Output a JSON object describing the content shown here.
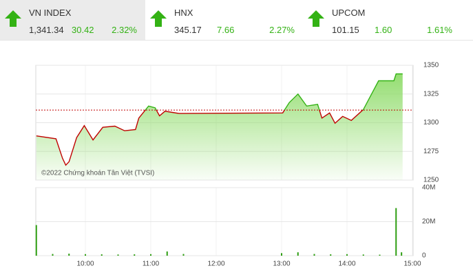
{
  "indices": [
    {
      "name": "VN INDEX",
      "value": "1,341.34",
      "change": "30.42",
      "percent": "2.32%"
    },
    {
      "name": "HNX",
      "value": "345.17",
      "change": "7.66",
      "percent": "2.27%"
    },
    {
      "name": "UPCOM",
      "value": "101.15",
      "change": "1.60",
      "percent": "1.61%"
    }
  ],
  "chart_data": [
    {
      "type": "line",
      "watermark": "©2022 Chứng khoán Tân Việt (TVSI)",
      "x": [
        "9:15",
        "9:33",
        "9:39",
        "9:42",
        "9:45",
        "9:52",
        "9:59",
        "10:07",
        "10:16",
        "10:27",
        "10:36",
        "10:46",
        "10:49",
        "10:58",
        "11:04",
        "11:08",
        "11:13",
        "11:26",
        "13:01",
        "13:07",
        "13:15",
        "13:23",
        "13:33",
        "13:37",
        "13:44",
        "13:49",
        "13:56",
        "14:04",
        "14:15",
        "14:20",
        "14:29",
        "14:43",
        "14:45",
        "14:51"
      ],
      "values": [
        1288.5,
        1286,
        1269,
        1263,
        1266,
        1287,
        1297.5,
        1285,
        1296,
        1297,
        1293,
        1294,
        1304,
        1314.5,
        1313,
        1306,
        1310,
        1308,
        1308.5,
        1317.5,
        1325,
        1314.5,
        1316,
        1304,
        1308.5,
        1299.5,
        1305.5,
        1302,
        1311.5,
        1320.5,
        1336.5,
        1336.5,
        1342.5,
        1342.5
      ],
      "reference": 1311,
      "up_color": "#33b214",
      "down_color": "#c00000",
      "ylim": [
        1250,
        1350
      ],
      "yticks": [
        1250,
        1275,
        1300,
        1325,
        1350
      ],
      "grid": true
    },
    {
      "type": "bar",
      "color": "#2e9e12",
      "x": [
        "9:15",
        "9:30",
        "9:45",
        "10:00",
        "10:15",
        "10:30",
        "10:45",
        "11:00",
        "11:15",
        "11:30",
        "13:00",
        "13:15",
        "13:30",
        "13:45",
        "14:00",
        "14:15",
        "14:30",
        "14:45",
        "14:50"
      ],
      "values": [
        18000000,
        1000000,
        1200000,
        900000,
        800000,
        700000,
        800000,
        900000,
        2500000,
        1000000,
        1500000,
        2000000,
        1000000,
        800000,
        900000,
        700000,
        600000,
        28000000,
        2000000
      ],
      "ylim": [
        0,
        40000000
      ],
      "yticks": [
        0,
        {
          "value": 20000000,
          "label": "20M"
        },
        {
          "value": 40000000,
          "label": "40M"
        }
      ],
      "xticks": [
        "10:00",
        "11:00",
        "12:00",
        "13:00",
        "14:00",
        "15:00"
      ],
      "grid": true
    }
  ]
}
